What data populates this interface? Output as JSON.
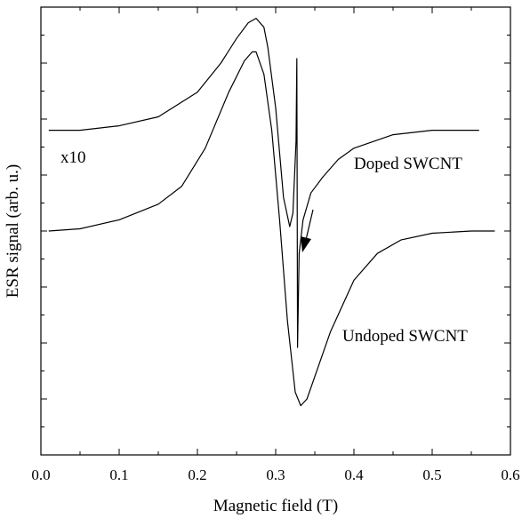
{
  "chart_data": {
    "type": "line",
    "xlabel": "Magnetic field (T)",
    "ylabel": "ESR signal (arb. u.)",
    "xlim": [
      0.0,
      0.6
    ],
    "ylim": [
      -1.0,
      1.0
    ],
    "x_ticks": [
      "0.0",
      "0.1",
      "0.2",
      "0.3",
      "0.4",
      "0.5",
      "0.6"
    ],
    "grid": false,
    "y_tick_labels_shown": false,
    "series": [
      {
        "name": "Doped SWCNT",
        "note": "x10",
        "x": [
          0.01,
          0.05,
          0.1,
          0.15,
          0.2,
          0.23,
          0.25,
          0.265,
          0.275,
          0.285,
          0.29,
          0.3,
          0.31,
          0.318,
          0.322,
          0.326,
          0.327,
          0.328,
          0.33,
          0.335,
          0.345,
          0.36,
          0.38,
          0.4,
          0.45,
          0.5,
          0.56
        ],
        "y": [
          0.45,
          0.45,
          0.47,
          0.51,
          0.62,
          0.75,
          0.86,
          0.93,
          0.95,
          0.91,
          0.82,
          0.55,
          0.15,
          0.02,
          0.08,
          0.4,
          0.77,
          -0.52,
          -0.1,
          0.05,
          0.17,
          0.24,
          0.32,
          0.37,
          0.43,
          0.45,
          0.45
        ],
        "annotation_arrow_at_x": 0.335
      },
      {
        "name": "Undoped SWCNT",
        "x": [
          0.01,
          0.05,
          0.1,
          0.15,
          0.18,
          0.21,
          0.24,
          0.26,
          0.27,
          0.275,
          0.285,
          0.295,
          0.305,
          0.315,
          0.325,
          0.332,
          0.34,
          0.35,
          0.37,
          0.4,
          0.43,
          0.46,
          0.5,
          0.55,
          0.58
        ],
        "y": [
          0.0,
          0.01,
          0.05,
          0.12,
          0.2,
          0.37,
          0.62,
          0.76,
          0.8,
          0.8,
          0.7,
          0.45,
          0.05,
          -0.4,
          -0.72,
          -0.78,
          -0.75,
          -0.65,
          -0.45,
          -0.22,
          -0.1,
          -0.04,
          -0.01,
          0.0,
          0.0
        ]
      }
    ],
    "annotations": [
      "x10",
      "Doped SWCNT",
      "Undoped SWCNT"
    ]
  }
}
